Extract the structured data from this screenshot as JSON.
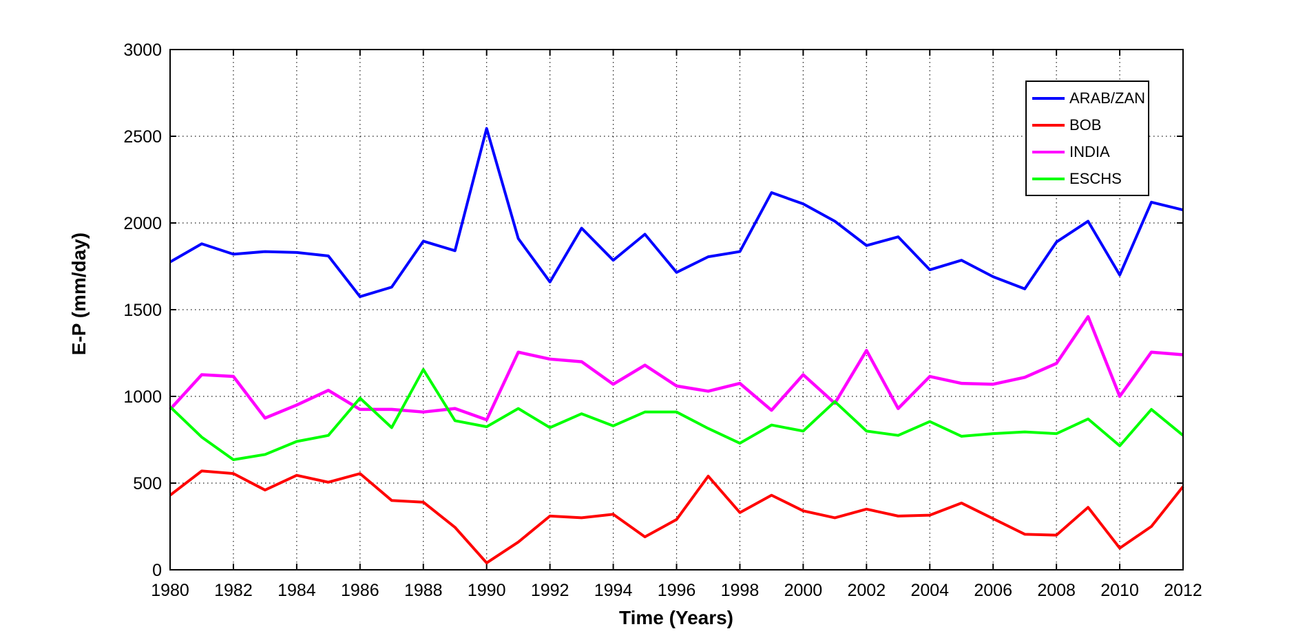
{
  "figure": {
    "background": "#ffffff",
    "axis_color": "#000000",
    "tick_label_color": "#000000"
  },
  "chart_data": {
    "type": "line",
    "title": "",
    "xlabel": "Time (Years)",
    "ylabel": "E-P (mm/day)",
    "xlim": [
      1980,
      2012
    ],
    "ylim": [
      0,
      3000
    ],
    "x_ticks": [
      1980,
      1982,
      1984,
      1986,
      1988,
      1990,
      1992,
      1994,
      1996,
      1998,
      2000,
      2002,
      2004,
      2006,
      2008,
      2010,
      2012
    ],
    "y_ticks": [
      0,
      500,
      1000,
      1500,
      2000,
      2500,
      3000
    ],
    "grid": "dotted",
    "grid_color": "#000000",
    "legend_position": "top-right",
    "x": [
      1980,
      1981,
      1982,
      1983,
      1984,
      1985,
      1986,
      1987,
      1988,
      1989,
      1990,
      1991,
      1992,
      1993,
      1994,
      1995,
      1996,
      1997,
      1998,
      1999,
      2000,
      2001,
      2002,
      2003,
      2004,
      2005,
      2006,
      2007,
      2008,
      2009,
      2010,
      2011,
      2012
    ],
    "series": [
      {
        "name": "ARAB/ZAN",
        "color": "#0000ff",
        "line_width": 4,
        "values": [
          1775,
          1880,
          1820,
          1835,
          1830,
          1810,
          1575,
          1630,
          1895,
          1840,
          2545,
          1910,
          1660,
          1970,
          1785,
          1935,
          1715,
          1805,
          1835,
          2175,
          2110,
          2010,
          1870,
          1920,
          1730,
          1785,
          1690,
          1620,
          1890,
          2010,
          1700,
          2120,
          2075
        ]
      },
      {
        "name": "BOB",
        "color": "#ff0000",
        "line_width": 4,
        "values": [
          430,
          570,
          555,
          460,
          545,
          505,
          555,
          400,
          390,
          245,
          40,
          160,
          310,
          300,
          320,
          190,
          290,
          540,
          330,
          430,
          340,
          300,
          350,
          310,
          315,
          385,
          295,
          205,
          200,
          360,
          125,
          250,
          480
        ]
      },
      {
        "name": "INDIA",
        "color": "#ff00ff",
        "line_width": 4.5,
        "values": [
          925,
          1125,
          1115,
          875,
          950,
          1035,
          925,
          925,
          910,
          930,
          865,
          1255,
          1215,
          1200,
          1070,
          1180,
          1060,
          1030,
          1075,
          920,
          1125,
          960,
          1265,
          930,
          1115,
          1075,
          1070,
          1110,
          1190,
          1460,
          1000,
          1255,
          1240
        ]
      },
      {
        "name": "ESCHS",
        "color": "#00ff00",
        "line_width": 4,
        "values": [
          940,
          765,
          635,
          665,
          740,
          775,
          990,
          820,
          1155,
          860,
          825,
          930,
          820,
          900,
          830,
          910,
          910,
          815,
          730,
          835,
          800,
          970,
          800,
          775,
          855,
          770,
          785,
          795,
          785,
          870,
          715,
          925,
          775
        ]
      }
    ]
  }
}
